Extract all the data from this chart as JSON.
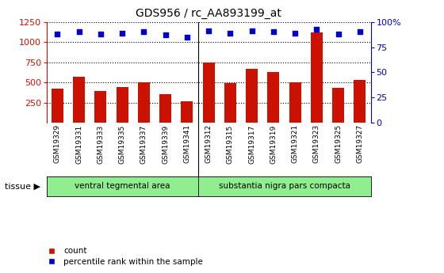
{
  "title": "GDS956 / rc_AA893199_at",
  "samples": [
    "GSM19329",
    "GSM19331",
    "GSM19333",
    "GSM19335",
    "GSM19337",
    "GSM19339",
    "GSM19341",
    "GSM19312",
    "GSM19315",
    "GSM19317",
    "GSM19319",
    "GSM19321",
    "GSM19323",
    "GSM19325",
    "GSM19327"
  ],
  "counts": [
    420,
    570,
    395,
    445,
    505,
    355,
    265,
    750,
    490,
    670,
    625,
    505,
    1120,
    435,
    530
  ],
  "percentiles": [
    88,
    90,
    88,
    89,
    90,
    87,
    85,
    91,
    89,
    91,
    90,
    89,
    93,
    88,
    90
  ],
  "group1_label": "ventral tegmental area",
  "group2_label": "substantia nigra pars compacta",
  "group1_count": 7,
  "group2_count": 8,
  "group_color": "#90EE90",
  "bar_color": "#CC1100",
  "dot_color": "#0000CC",
  "left_ylim": [
    0,
    1250
  ],
  "left_yticks": [
    250,
    500,
    750,
    1000,
    1250
  ],
  "right_ylim": [
    0,
    100
  ],
  "right_yticks": [
    0,
    25,
    50,
    75,
    100
  ],
  "right_yticklabels": [
    "0",
    "25",
    "50",
    "75",
    "100%"
  ],
  "tissue_label": "tissue",
  "legend_count": "count",
  "legend_pct": "percentile rank within the sample",
  "bg_color": "#FFFFFF",
  "plot_bg": "#FFFFFF",
  "tick_bg": "#C8C8C8",
  "dotted_line_color": "#000000",
  "axis_color_left": "#CC1100",
  "axis_color_right": "#0000CC"
}
